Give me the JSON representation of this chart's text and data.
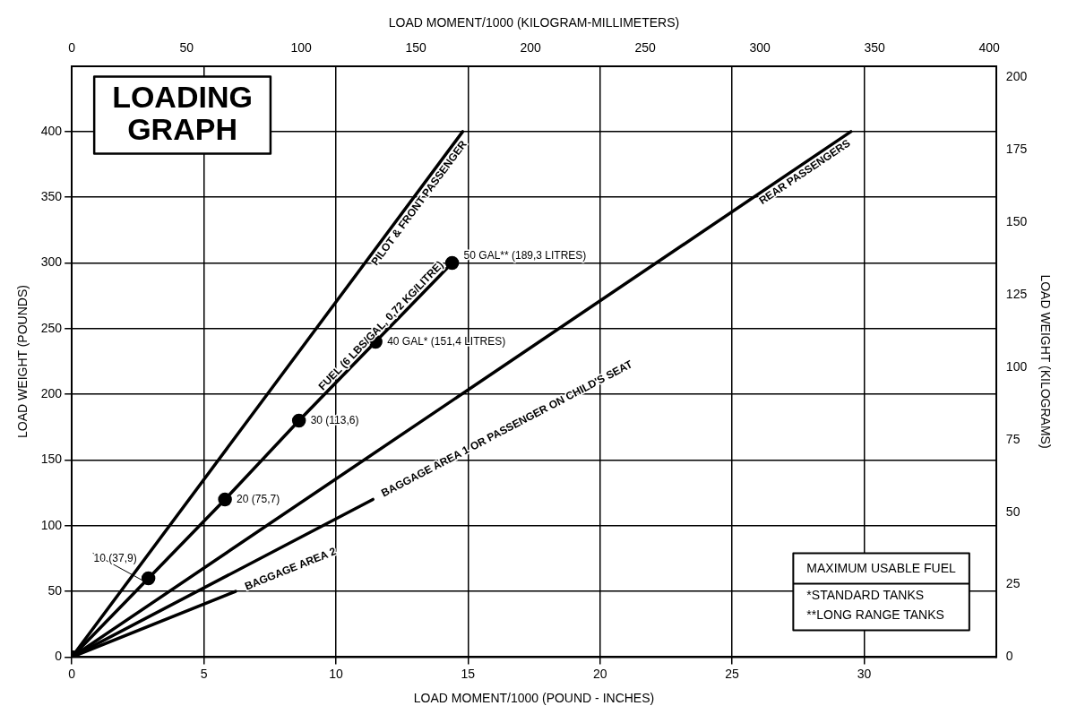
{
  "chart_data": {
    "type": "line",
    "title": "LOADING GRAPH",
    "xlabel": "LOAD MOMENT/1000 (POUND - INCHES)",
    "x2label": "LOAD MOMENT/1000 (KILOGRAM-MILLIMETERS)",
    "ylabel": "LOAD WEIGHT (POUNDS)",
    "y2label": "LOAD WEIGHT (KILOGRAMS)",
    "xlim": [
      0,
      35
    ],
    "xticks": [
      0,
      5,
      10,
      15,
      20,
      25,
      30
    ],
    "x2lim": [
      0,
      403
    ],
    "x2ticks": [
      0,
      50,
      100,
      150,
      200,
      250,
      300,
      350,
      400
    ],
    "ylim": [
      0,
      450
    ],
    "yticks": [
      0,
      50,
      100,
      150,
      200,
      250,
      300,
      350,
      400
    ],
    "y2lim": [
      0,
      204
    ],
    "y2ticks": [
      0,
      25,
      50,
      75,
      100,
      125,
      150,
      175,
      200
    ],
    "grid": true,
    "legend": false,
    "series": [
      {
        "name": "PILOT & FRONT PASSENGER",
        "color": "#000000",
        "x": [
          0,
          14.8
        ],
        "values": [
          0,
          400
        ]
      },
      {
        "name": "REAR PASSENGERS",
        "color": "#000000",
        "x": [
          0,
          29.5
        ],
        "values": [
          0,
          400
        ]
      },
      {
        "name": "FUEL (6 LBS/GAL, 0,72 KG/LITRE)",
        "color": "#000000",
        "marker": "circle",
        "x": [
          0,
          2.9,
          5.8,
          8.6,
          11.5,
          14.4
        ],
        "values": [
          0,
          60,
          120,
          180,
          240,
          300
        ]
      },
      {
        "name": "BAGGAGE AREA 1 OR PASSENGER ON CHILD'S SEAT",
        "color": "#000000",
        "x": [
          0,
          11.4
        ],
        "values": [
          0,
          120
        ]
      },
      {
        "name": "BAGGAGE AREA 2",
        "color": "#000000",
        "x": [
          0,
          6.2
        ],
        "values": [
          0,
          50
        ]
      }
    ],
    "annotations": [
      {
        "text": "10 (37,9)",
        "x": 2.9,
        "y": 60
      },
      {
        "text": "20 (75,7)",
        "x": 5.8,
        "y": 120
      },
      {
        "text": "30 (113,6)",
        "x": 8.6,
        "y": 180
      },
      {
        "text": "40 GAL* (151,4 LITRES)",
        "x": 11.5,
        "y": 240
      },
      {
        "text": "50 GAL** (189,3 LITRES)",
        "x": 14.4,
        "y": 300
      },
      "MAXIMUM USABLE FUEL",
      "*STANDARD TANKS",
      "**LONG RANGE TANKS"
    ]
  }
}
